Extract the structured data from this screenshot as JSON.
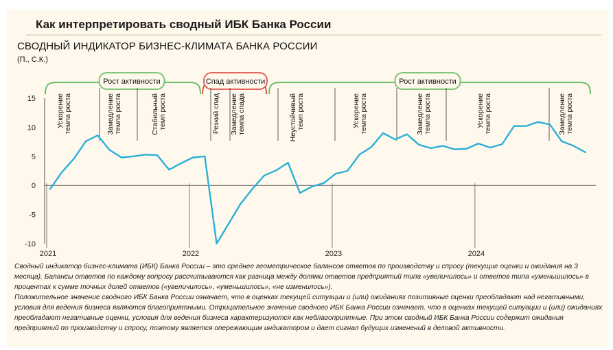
{
  "header": {
    "title": "Как интерпретировать сводный ИБК Банка России"
  },
  "chart_data": {
    "type": "line",
    "title": "СВОДНЫЙ ИНДИКАТОР БИЗНЕС-КЛИМАТА БАНКА РОССИИ",
    "subtitle": "(П., С.К.)",
    "ylim": [
      -10,
      15
    ],
    "y_ticks": [
      "15",
      "10",
      "5",
      "0",
      "-5",
      "-10"
    ],
    "x_tick_labels": [
      "2021",
      "2022",
      "2023",
      "2024"
    ],
    "grid": false,
    "legend": "none",
    "line_color": "#2ab0d8",
    "series": [
      {
        "values": [
          -0.6,
          2.3,
          4.6,
          7.6,
          8.6,
          6.1,
          4.8,
          5.0,
          5.3,
          5.2,
          2.7,
          3.8,
          4.8,
          5.0,
          -10.0,
          -6.6,
          -3.2,
          -0.6,
          1.7,
          2.6,
          3.9,
          -1.3,
          -0.2,
          0.4,
          2.0,
          2.5,
          5.3,
          6.6,
          9.0,
          7.9,
          8.8,
          7.0,
          6.4,
          6.8,
          6.2,
          6.3,
          7.2,
          6.5,
          7.1,
          10.2,
          10.2,
          10.9,
          10.5,
          7.6,
          6.8,
          5.7
        ]
      }
    ],
    "phases": [
      {
        "label": "Рост активности",
        "style": "green"
      },
      {
        "label": "Спад активности",
        "style": "red"
      },
      {
        "label": "Рост активности",
        "style": "green"
      }
    ],
    "annotations": [
      {
        "line1": "Ускорение",
        "line2": "темпа роста"
      },
      {
        "line1": "Замедление",
        "line2": "темпа роста"
      },
      {
        "line1": "Стабильный",
        "line2": "темп роста"
      },
      {
        "line1": "Резкий спад",
        "line2": ""
      },
      {
        "line1": "Замедление",
        "line2": "темпа спада"
      },
      {
        "line1": "Неустойчивый",
        "line2": "темп роста"
      },
      {
        "line1": "Ускорение",
        "line2": "темпа роста"
      },
      {
        "line1": "Замедление",
        "line2": "темпа роста"
      },
      {
        "line1": "Ускорение",
        "line2": "темпа роста"
      },
      {
        "line1": "Замедление",
        "line2": "темпа роста"
      }
    ]
  },
  "notes": {
    "p1": "Сводный индикатор бизнес-климата (ИБК) Банка России – это среднее геометрическое балансов ответов по производству и спросу (текущие оценки и ожидания на 3 месяца). Балансы ответов по каждому вопросу рассчитываются как разница между долями ответов предприятий типа «увеличилось» и ответов типа «уменьшилось» в процентах к сумме точных долей ответов («увеличилось», «уменьшилось», «не изменилось»).",
    "p2": "Положительное значение сводного ИБК Банка России означает, что в оценках текущей ситуации и (или) ожиданиях позитивные оценки преобладают над негативными, условия для ведения бизнеса являются благоприятными. Отрицательное значение сводного ИБК Банка России означает, что в оценках текущей ситуации и (или) ожиданиях преобладают негативные оценки, условия для ведения бизнеса характеризуются как неблагоприятные. При этом сводный ИБК Банка России содержит ожидания предприятий по производству и спросу, поэтому является опережающим индикатором и дает сигнал будущих изменений в деловой активности."
  }
}
